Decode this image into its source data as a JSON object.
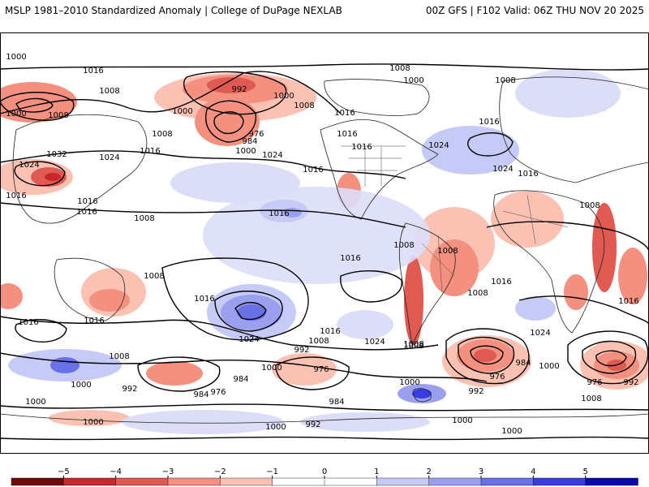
{
  "header": {
    "left_title": "MSLP 1981–2010 Standardized Anomaly | College of DuPage NEXLAB",
    "right_title": "00Z GFS | F102 Valid: 06Z THU NOV 20 2025"
  },
  "colorbar": {
    "tick_labels": [
      "−5",
      "−4",
      "−3",
      "−2",
      "−1",
      "0",
      "1",
      "2",
      "3",
      "4",
      "5"
    ],
    "colors": [
      "#6e0a0a",
      "#c8282a",
      "#e05a52",
      "#f39080",
      "#fbc2b4",
      "#ffffff",
      "#ffffff",
      "#c6caf6",
      "#9aa0ee",
      "#6a70e6",
      "#3a3ee0",
      "#0a0aa8"
    ]
  },
  "isobar_labels": [
    "1016",
    "1008",
    "1000",
    "1008",
    "992",
    "1000",
    "1008",
    "1008",
    "1000",
    "1008",
    "1016",
    "1016",
    "1024",
    "1000",
    "1008",
    "976",
    "984",
    "1000",
    "1024",
    "1016",
    "1016",
    "1016",
    "1032",
    "1024",
    "1016",
    "1024",
    "1024",
    "1016",
    "1016",
    "1016",
    "1016",
    "1008",
    "1016",
    "1008",
    "1008",
    "1008",
    "1016",
    "1008",
    "1016",
    "1016",
    "1008",
    "1016",
    "1016",
    "1024",
    "1024",
    "1016",
    "1016",
    "1008",
    "1024",
    "1008",
    "992",
    "1000",
    "976",
    "984",
    "1008",
    "1000",
    "992",
    "984",
    "976",
    "984",
    "1000",
    "1008",
    "1000",
    "1000",
    "992",
    "1000",
    "1000",
    "992",
    "976",
    "1000",
    "984",
    "976",
    "992",
    "1008",
    "1000",
    "1000"
  ]
}
